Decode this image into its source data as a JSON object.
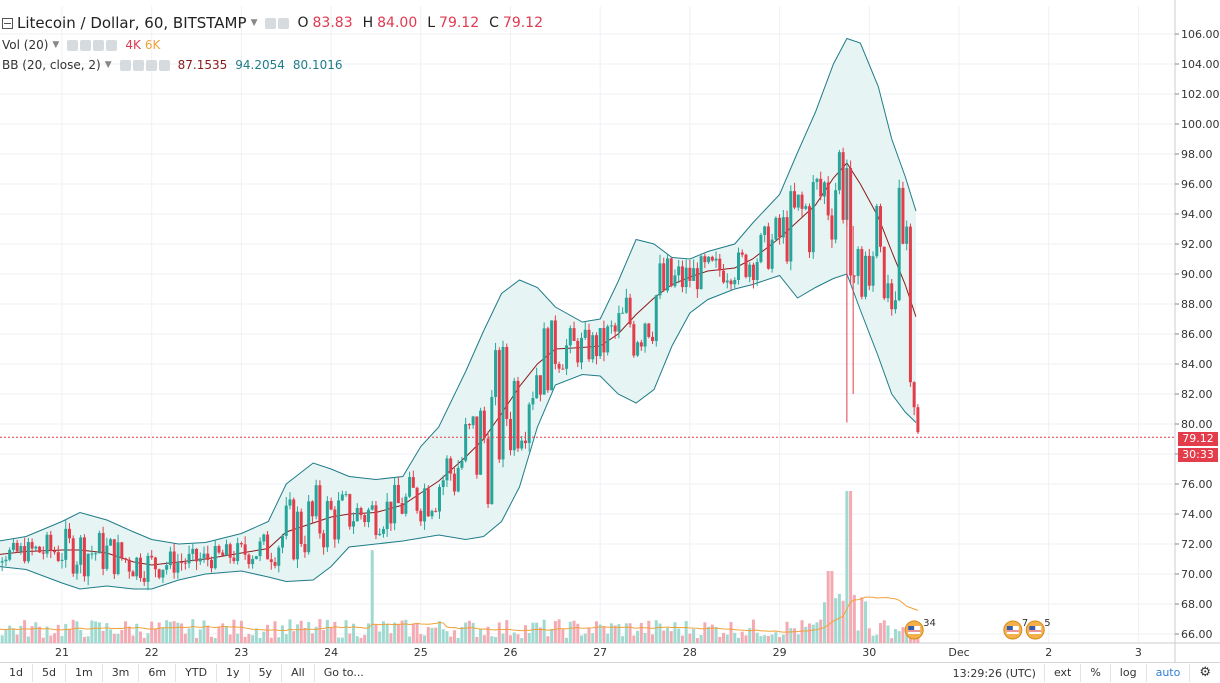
{
  "header": {
    "symbol_title": "Litecoin / Dollar, 60, BITSTAMP",
    "o_label": "O",
    "o_value": "83.83",
    "h_label": "H",
    "h_value": "84.00",
    "l_label": "L",
    "l_value": "79.12",
    "c_label": "C",
    "c_value": "79.12"
  },
  "indicators": {
    "vol": {
      "label": "Vol (20)",
      "v1": "4K",
      "v2": "6K"
    },
    "bb": {
      "label": "BB (20, close, 2)",
      "basis": "87.1535",
      "upper": "94.2054",
      "lower": "80.1016"
    }
  },
  "price_tags": {
    "last_price": "79.12",
    "countdown": "30:33"
  },
  "toolbar": {
    "ranges": [
      "1d",
      "5d",
      "1m",
      "3m",
      "6m",
      "YTD",
      "1y",
      "5y",
      "All"
    ],
    "goto": "Go to...",
    "time": "13:29:26 (UTC)",
    "ext": "ext",
    "percent": "%",
    "log": "log",
    "auto": "auto",
    "settings_icon": "gear-icon"
  },
  "events": [
    {
      "icon": "us-flag-icon",
      "count": "34"
    },
    {
      "icon": "us-flag-icon",
      "count": "7"
    },
    {
      "icon": "us-flag-icon",
      "count": "5"
    }
  ],
  "colors": {
    "up": "#26a69a",
    "down": "#e33c4a",
    "bb_basis": "#8b1a1a",
    "bb_band": "#1f7c88",
    "bb_fill": "#e6f4f4",
    "vol_ma": "#f0a13a",
    "last_price_line": "#e33c4a"
  },
  "chart_data": {
    "type": "candlestick",
    "title": "Litecoin / Dollar, 60, BITSTAMP",
    "x_tick_labels": [
      "21",
      "22",
      "23",
      "24",
      "25",
      "26",
      "27",
      "28",
      "29",
      "30",
      "Dec",
      "2",
      "3"
    ],
    "y_tick_labels": [
      "66.00",
      "68.00",
      "70.00",
      "72.00",
      "74.00",
      "76.00",
      "78.00",
      "80.00",
      "82.00",
      "84.00",
      "86.00",
      "88.00",
      "90.00",
      "92.00",
      "94.00",
      "96.00",
      "98.00",
      "100.00",
      "102.00",
      "104.00",
      "106.00"
    ],
    "ylim": [
      65,
      107
    ],
    "grid": true,
    "last_close": 79.12,
    "bollinger_path": [
      {
        "day": 20.3,
        "upper": 72.2,
        "basis": 71.3,
        "lower": 70.5
      },
      {
        "day": 20.6,
        "upper": 72.5,
        "basis": 71.5,
        "lower": 70.3
      },
      {
        "day": 21.0,
        "upper": 73.5,
        "basis": 71.6,
        "lower": 69.4
      },
      {
        "day": 21.2,
        "upper": 74.1,
        "basis": 71.6,
        "lower": 69.0
      },
      {
        "day": 21.5,
        "upper": 73.6,
        "basis": 71.4,
        "lower": 69.2
      },
      {
        "day": 21.8,
        "upper": 72.8,
        "basis": 70.8,
        "lower": 69.0
      },
      {
        "day": 22.0,
        "upper": 72.3,
        "basis": 70.6,
        "lower": 69.0
      },
      {
        "day": 22.3,
        "upper": 72.0,
        "basis": 70.8,
        "lower": 69.6
      },
      {
        "day": 22.6,
        "upper": 72.1,
        "basis": 71.0,
        "lower": 70.0
      },
      {
        "day": 23.0,
        "upper": 72.7,
        "basis": 71.4,
        "lower": 70.2
      },
      {
        "day": 23.3,
        "upper": 73.5,
        "basis": 71.7,
        "lower": 69.8
      },
      {
        "day": 23.5,
        "upper": 76.0,
        "basis": 72.8,
        "lower": 69.5
      },
      {
        "day": 23.8,
        "upper": 77.4,
        "basis": 73.4,
        "lower": 69.6
      },
      {
        "day": 24.0,
        "upper": 77.0,
        "basis": 73.8,
        "lower": 70.5
      },
      {
        "day": 24.2,
        "upper": 76.5,
        "basis": 74.0,
        "lower": 71.8
      },
      {
        "day": 24.5,
        "upper": 76.3,
        "basis": 74.1,
        "lower": 72.0
      },
      {
        "day": 24.8,
        "upper": 76.5,
        "basis": 74.6,
        "lower": 72.2
      },
      {
        "day": 25.0,
        "upper": 78.5,
        "basis": 75.4,
        "lower": 72.4
      },
      {
        "day": 25.2,
        "upper": 79.8,
        "basis": 76.2,
        "lower": 72.6
      },
      {
        "day": 25.5,
        "upper": 83.5,
        "basis": 77.8,
        "lower": 72.3
      },
      {
        "day": 25.7,
        "upper": 86.2,
        "basis": 79.0,
        "lower": 72.5
      },
      {
        "day": 25.9,
        "upper": 88.7,
        "basis": 80.7,
        "lower": 73.5
      },
      {
        "day": 26.1,
        "upper": 89.6,
        "basis": 82.5,
        "lower": 75.8
      },
      {
        "day": 26.3,
        "upper": 89.1,
        "basis": 84.0,
        "lower": 79.8
      },
      {
        "day": 26.5,
        "upper": 87.8,
        "basis": 85.0,
        "lower": 82.6
      },
      {
        "day": 26.8,
        "upper": 86.8,
        "basis": 85.1,
        "lower": 83.3
      },
      {
        "day": 27.0,
        "upper": 87.0,
        "basis": 85.2,
        "lower": 83.2
      },
      {
        "day": 27.2,
        "upper": 89.5,
        "basis": 86.0,
        "lower": 82.0
      },
      {
        "day": 27.4,
        "upper": 92.3,
        "basis": 87.3,
        "lower": 81.4
      },
      {
        "day": 27.6,
        "upper": 92.0,
        "basis": 88.4,
        "lower": 82.3
      },
      {
        "day": 27.8,
        "upper": 91.1,
        "basis": 89.3,
        "lower": 85.2
      },
      {
        "day": 28.0,
        "upper": 91.0,
        "basis": 89.8,
        "lower": 87.4
      },
      {
        "day": 28.2,
        "upper": 91.5,
        "basis": 90.2,
        "lower": 88.3
      },
      {
        "day": 28.5,
        "upper": 92.0,
        "basis": 90.4,
        "lower": 89.0
      },
      {
        "day": 28.7,
        "upper": 93.4,
        "basis": 91.0,
        "lower": 89.3
      },
      {
        "day": 29.0,
        "upper": 95.3,
        "basis": 92.4,
        "lower": 89.9
      },
      {
        "day": 29.2,
        "upper": 98.1,
        "basis": 93.5,
        "lower": 88.4
      },
      {
        "day": 29.4,
        "upper": 100.8,
        "basis": 94.6,
        "lower": 89.1
      },
      {
        "day": 29.6,
        "upper": 104.0,
        "basis": 96.4,
        "lower": 89.7
      },
      {
        "day": 29.75,
        "upper": 105.7,
        "basis": 97.4,
        "lower": 90.0
      },
      {
        "day": 29.9,
        "upper": 105.4,
        "basis": 96.0,
        "lower": 87.6
      },
      {
        "day": 30.1,
        "upper": 102.5,
        "basis": 93.8,
        "lower": 84.5
      },
      {
        "day": 30.25,
        "upper": 99.0,
        "basis": 91.5,
        "lower": 82.0
      },
      {
        "day": 30.4,
        "upper": 96.5,
        "basis": 89.3,
        "lower": 80.8
      },
      {
        "day": 30.52,
        "upper": 94.2,
        "basis": 87.15,
        "lower": 80.1
      }
    ],
    "spikes": [
      {
        "day": 29.75,
        "low": 80.1,
        "high": 97.0
      },
      {
        "day": 29.82,
        "low": 82.0,
        "high": 93.2
      }
    ]
  }
}
